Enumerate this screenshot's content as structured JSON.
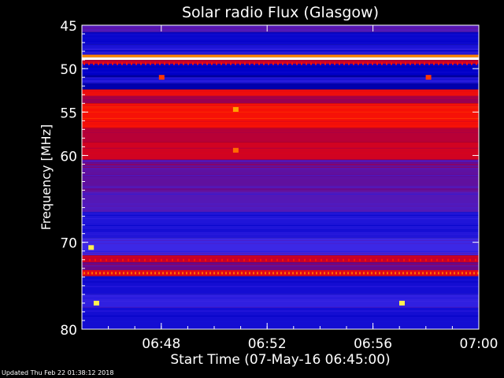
{
  "chart_data": {
    "type": "heatmap",
    "title": "Solar radio Flux (Glasgow)",
    "xlabel": "Start Time (07-May-16 06:45:00)",
    "ylabel": "Frequency [MHz]",
    "x_range": [
      "06:45:00",
      "07:00:00"
    ],
    "ylim": [
      45,
      80
    ],
    "y_ticks": [
      "45",
      "50",
      "55",
      "60",
      "70",
      "80"
    ],
    "x_ticks": [
      "06:48",
      "06:52",
      "06:56",
      "07:00"
    ],
    "colormap": "black-blue-red-yellow-white",
    "colors": {
      "background": "#000000",
      "axis": "#ffffff",
      "low": "#0000c8",
      "mid": "#ff0000",
      "high": "#ffffff"
    },
    "bands": [
      {
        "from": 45.0,
        "to": 45.8,
        "level": 0.34
      },
      {
        "from": 45.8,
        "to": 47.2,
        "level": 0.18
      },
      {
        "from": 47.2,
        "to": 48.4,
        "level": 0.22
      },
      {
        "from": 48.4,
        "to": 48.7,
        "level": 0.75
      },
      {
        "from": 48.7,
        "to": 49.0,
        "level": 1.0
      },
      {
        "from": 49.0,
        "to": 49.4,
        "level": 0.5
      },
      {
        "from": 49.4,
        "to": 51.0,
        "level": 0.15
      },
      {
        "from": 51.0,
        "to": 51.7,
        "level": 0.24
      },
      {
        "from": 51.7,
        "to": 52.4,
        "level": 0.12
      },
      {
        "from": 52.4,
        "to": 53.1,
        "level": 0.58
      },
      {
        "from": 53.1,
        "to": 54.0,
        "level": 0.44
      },
      {
        "from": 54.0,
        "to": 56.8,
        "level": 0.6
      },
      {
        "from": 56.8,
        "to": 58.5,
        "level": 0.48
      },
      {
        "from": 58.5,
        "to": 60.5,
        "level": 0.52
      },
      {
        "from": 60.5,
        "to": 63.5,
        "level": 0.36
      },
      {
        "from": 63.5,
        "to": 66.5,
        "level": 0.34
      },
      {
        "from": 66.5,
        "to": 69.5,
        "level": 0.23
      },
      {
        "from": 69.5,
        "to": 71.5,
        "level": 0.3
      },
      {
        "from": 71.5,
        "to": 72.3,
        "level": 0.5
      },
      {
        "from": 72.3,
        "to": 73.2,
        "level": 0.38
      },
      {
        "from": 73.2,
        "to": 73.9,
        "level": 0.55
      },
      {
        "from": 73.9,
        "to": 76.0,
        "level": 0.2
      },
      {
        "from": 76.0,
        "to": 77.5,
        "level": 0.27
      },
      {
        "from": 77.5,
        "to": 80.0,
        "level": 0.2
      }
    ],
    "spots": [
      {
        "time": "06:45:32",
        "freq": 77.0,
        "level": 0.9
      },
      {
        "time": "06:57:05",
        "freq": 77.0,
        "level": 0.9
      },
      {
        "time": "06:50:48",
        "freq": 54.7,
        "level": 0.78
      },
      {
        "time": "06:50:48",
        "freq": 59.4,
        "level": 0.72
      },
      {
        "time": "06:48:00",
        "freq": 51.0,
        "level": 0.66
      },
      {
        "time": "06:58:05",
        "freq": 51.0,
        "level": 0.66
      },
      {
        "time": "06:45:20",
        "freq": 70.6,
        "level": 0.9
      }
    ]
  },
  "footer": {
    "updated": "Updated Thu Feb 22 01:38:12 2018"
  }
}
